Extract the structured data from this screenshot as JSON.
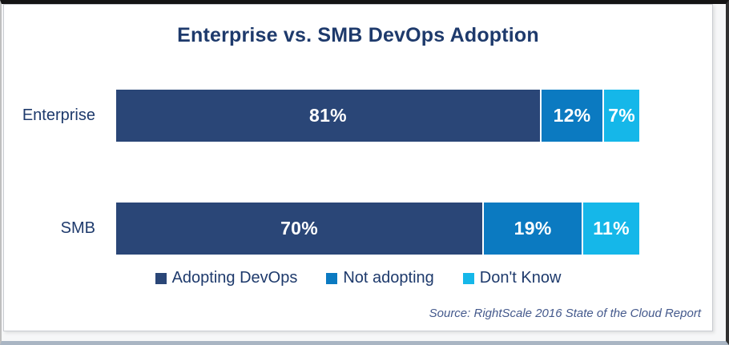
{
  "title": "Enterprise vs. SMB DevOps Adoption",
  "source_note": "Source: RightScale 2016 State of the Cloud Report",
  "colors": {
    "adopting_devops": "#2a4677",
    "not_adopting": "#0b7ac1",
    "dont_know": "#15b7e9",
    "heading_text": "#1e3a6c",
    "segment_label_text": "#ffffff",
    "source_text": "#44598c"
  },
  "chart_data": {
    "type": "bar",
    "orientation": "horizontal",
    "stacked": true,
    "title": "Enterprise vs. SMB DevOps Adoption",
    "categories": [
      "Enterprise",
      "SMB"
    ],
    "series": [
      {
        "name": "Adopting DevOps",
        "color": "#2a4677",
        "values": [
          81,
          70
        ]
      },
      {
        "name": "Not adopting",
        "color": "#0b7ac1",
        "values": [
          12,
          19
        ]
      },
      {
        "name": "Don't Know",
        "color": "#15b7e9",
        "values": [
          7,
          11
        ]
      }
    ],
    "value_suffix": "%",
    "xlim": [
      0,
      100
    ],
    "grid": false,
    "legend_position": "bottom",
    "source": "Source: RightScale 2016 State of the Cloud Report"
  }
}
